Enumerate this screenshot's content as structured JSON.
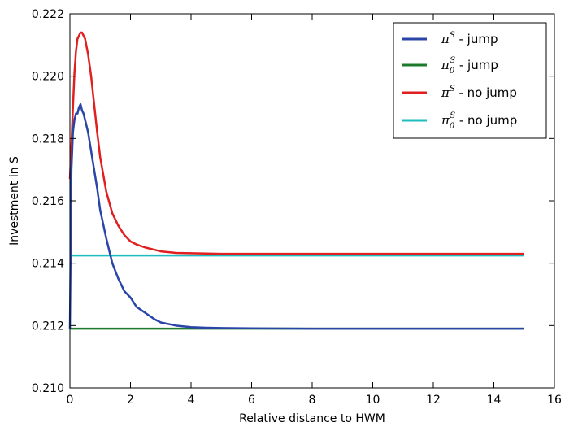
{
  "chart_data": {
    "type": "line",
    "xlabel": "Relative distance to HWM",
    "ylabel": "Investment in S",
    "xlim": [
      0,
      16
    ],
    "ylim": [
      0.21,
      0.222
    ],
    "xticks": [
      "0",
      "2",
      "4",
      "6",
      "8",
      "10",
      "12",
      "14",
      "16"
    ],
    "yticks": [
      "0.210",
      "0.212",
      "0.214",
      "0.216",
      "0.218",
      "0.220",
      "0.222"
    ],
    "grid": false,
    "legend_position": "top-right",
    "series": [
      {
        "name": "π^S - jump",
        "color": "#2a45a8",
        "x": [
          0,
          0.05,
          0.1,
          0.15,
          0.2,
          0.25,
          0.3,
          0.35,
          0.4,
          0.45,
          0.5,
          0.6,
          0.7,
          0.8,
          0.9,
          1.0,
          1.2,
          1.4,
          1.6,
          1.8,
          2.0,
          2.2,
          2.5,
          2.8,
          3.0,
          3.5,
          4.0,
          4.5,
          5.0,
          6.0,
          8.0,
          10.0,
          12.0,
          15.0
        ],
        "y": [
          0.2119,
          0.217,
          0.2182,
          0.2186,
          0.2188,
          0.2188,
          0.219,
          0.2191,
          0.2189,
          0.2188,
          0.2186,
          0.2182,
          0.2176,
          0.217,
          0.2164,
          0.2157,
          0.2148,
          0.214,
          0.2135,
          0.2131,
          0.2129,
          0.2126,
          0.2124,
          0.2122,
          0.2121,
          0.212,
          0.21195,
          0.21193,
          0.21192,
          0.21191,
          0.2119,
          0.2119,
          0.2119,
          0.2119
        ]
      },
      {
        "name": "π₀^S - jump",
        "color": "#1b7a2b",
        "x": [
          0,
          15
        ],
        "y": [
          0.2119,
          0.2119
        ]
      },
      {
        "name": "π^S - no jump",
        "color": "#e02020",
        "x": [
          0,
          0.05,
          0.1,
          0.15,
          0.2,
          0.25,
          0.3,
          0.35,
          0.4,
          0.45,
          0.5,
          0.6,
          0.7,
          0.8,
          0.9,
          1.0,
          1.2,
          1.4,
          1.6,
          1.8,
          2.0,
          2.2,
          2.5,
          2.8,
          3.0,
          3.5,
          4.0,
          4.5,
          5.0,
          6.0,
          8.0,
          10.0,
          12.0,
          15.0
        ],
        "y": [
          0.2167,
          0.2178,
          0.219,
          0.2201,
          0.2208,
          0.2212,
          0.2213,
          0.2214,
          0.2214,
          0.2213,
          0.2212,
          0.2207,
          0.22,
          0.2191,
          0.2182,
          0.2174,
          0.2163,
          0.2156,
          0.2152,
          0.2149,
          0.2147,
          0.2146,
          0.2145,
          0.21443,
          0.21438,
          0.21433,
          0.21432,
          0.21431,
          0.2143,
          0.2143,
          0.2143,
          0.2143,
          0.2143,
          0.2143
        ]
      },
      {
        "name": "π₀^S - no jump",
        "color": "#1fbcc0",
        "x": [
          0,
          15
        ],
        "y": [
          0.21425,
          0.21425
        ]
      }
    ]
  }
}
